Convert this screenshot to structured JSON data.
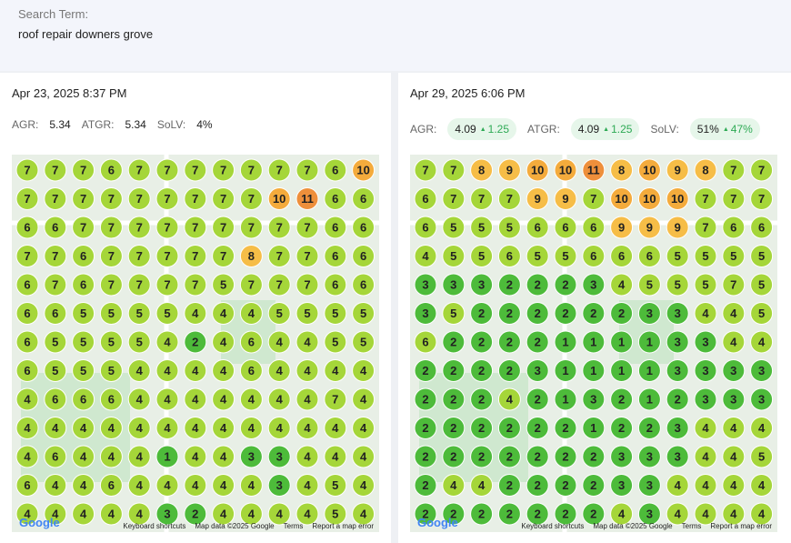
{
  "search": {
    "label": "Search Term:",
    "value": "roof repair downers grove"
  },
  "map_footer": {
    "logo": "Google",
    "shortcuts": "Keyboard shortcuts",
    "data": "Map data ©2025 Google",
    "terms": "Terms",
    "report": "Report a map error"
  },
  "panels": [
    {
      "date": "Apr 23, 2025 8:37 PM",
      "metrics": [
        {
          "label": "AGR:",
          "value": "5.34"
        },
        {
          "label": "ATGR:",
          "value": "5.34"
        },
        {
          "label": "SoLV:",
          "value": "4%"
        }
      ],
      "grid": [
        [
          7,
          7,
          7,
          6,
          7,
          7,
          7,
          7,
          7,
          7,
          7,
          6,
          10
        ],
        [
          7,
          7,
          7,
          7,
          7,
          7,
          7,
          7,
          7,
          10,
          11,
          6,
          6
        ],
        [
          6,
          6,
          7,
          7,
          7,
          7,
          7,
          7,
          7,
          7,
          7,
          6,
          6
        ],
        [
          7,
          7,
          6,
          7,
          7,
          7,
          7,
          7,
          8,
          7,
          7,
          6,
          6
        ],
        [
          6,
          7,
          6,
          7,
          7,
          7,
          7,
          5,
          7,
          7,
          7,
          6,
          6
        ],
        [
          6,
          6,
          5,
          5,
          5,
          5,
          4,
          4,
          4,
          5,
          5,
          5,
          5
        ],
        [
          6,
          5,
          5,
          5,
          5,
          4,
          2,
          4,
          6,
          4,
          4,
          5,
          5
        ],
        [
          6,
          5,
          5,
          5,
          4,
          4,
          4,
          4,
          6,
          4,
          4,
          4,
          4
        ],
        [
          4,
          6,
          6,
          6,
          4,
          4,
          4,
          4,
          4,
          4,
          4,
          7,
          4
        ],
        [
          4,
          4,
          4,
          4,
          4,
          4,
          4,
          4,
          4,
          4,
          4,
          4,
          4
        ],
        [
          4,
          6,
          4,
          4,
          4,
          1,
          4,
          4,
          3,
          3,
          4,
          4,
          4
        ],
        [
          6,
          4,
          4,
          6,
          4,
          4,
          4,
          4,
          4,
          3,
          4,
          5,
          4
        ],
        [
          4,
          4,
          4,
          4,
          4,
          3,
          2,
          4,
          4,
          4,
          4,
          5,
          4
        ]
      ]
    },
    {
      "date": "Apr 29, 2025 6:06 PM",
      "metrics": [
        {
          "label": "AGR:",
          "value": "4.09",
          "change": "1.25"
        },
        {
          "label": "ATGR:",
          "value": "4.09",
          "change": "1.25"
        },
        {
          "label": "SoLV:",
          "value": "51%",
          "change": "47%"
        }
      ],
      "grid": [
        [
          7,
          7,
          8,
          9,
          10,
          10,
          11,
          8,
          10,
          9,
          8,
          7,
          7
        ],
        [
          6,
          7,
          7,
          7,
          9,
          9,
          7,
          10,
          10,
          10,
          7,
          7,
          7
        ],
        [
          6,
          5,
          5,
          5,
          6,
          6,
          6,
          9,
          9,
          9,
          7,
          6,
          6
        ],
        [
          4,
          5,
          5,
          6,
          5,
          5,
          6,
          6,
          6,
          5,
          5,
          5,
          5
        ],
        [
          3,
          3,
          3,
          2,
          2,
          2,
          3,
          4,
          5,
          5,
          5,
          7,
          5
        ],
        [
          3,
          5,
          2,
          2,
          2,
          2,
          2,
          2,
          3,
          3,
          4,
          4,
          5
        ],
        [
          6,
          2,
          2,
          2,
          2,
          1,
          1,
          1,
          1,
          3,
          3,
          4,
          4
        ],
        [
          2,
          2,
          2,
          2,
          3,
          1,
          1,
          1,
          1,
          3,
          3,
          3,
          3
        ],
        [
          2,
          2,
          2,
          4,
          2,
          1,
          3,
          2,
          1,
          2,
          3,
          3,
          3
        ],
        [
          2,
          2,
          2,
          2,
          2,
          2,
          1,
          2,
          2,
          3,
          4,
          4,
          4
        ],
        [
          2,
          2,
          2,
          2,
          2,
          2,
          2,
          3,
          3,
          3,
          4,
          4,
          5
        ],
        [
          2,
          4,
          4,
          2,
          2,
          2,
          2,
          3,
          3,
          4,
          4,
          4,
          4
        ],
        [
          2,
          2,
          2,
          2,
          2,
          2,
          2,
          4,
          3,
          4,
          4,
          4,
          4
        ]
      ]
    }
  ]
}
